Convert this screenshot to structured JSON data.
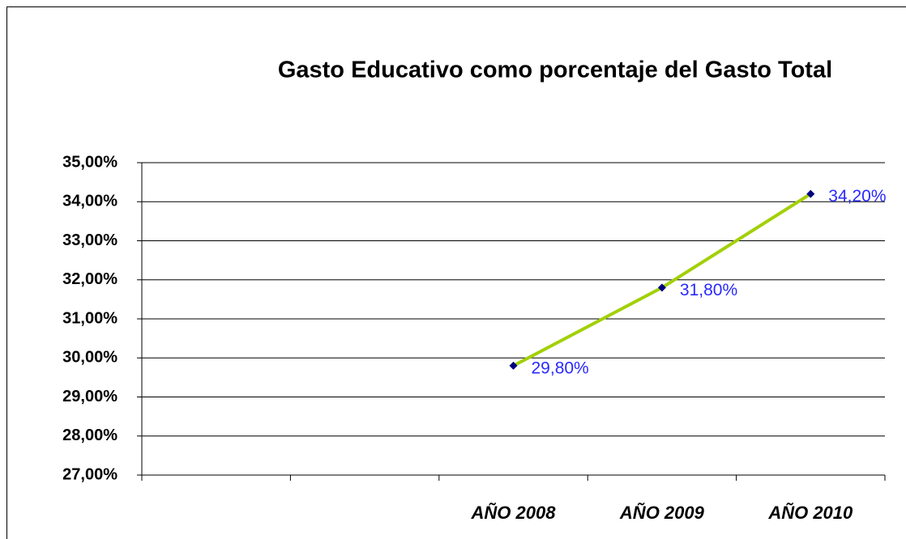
{
  "chart_data": {
    "type": "line",
    "title": "Gasto Educativo como porcentaje del Gasto Total",
    "categories": [
      null,
      null,
      "AÑO 2008",
      "AÑO 2009",
      "AÑO 2010"
    ],
    "values": [
      null,
      null,
      29.8,
      31.8,
      34.2
    ],
    "value_labels": [
      null,
      null,
      "29,80%",
      "31,80%",
      "34,20%"
    ],
    "color": "#a2d007",
    "marker_color": "#000080",
    "label_color": "#2929ff",
    "ylim": [
      27,
      35
    ],
    "yticks": [
      {
        "value": 27,
        "label": "27,00%"
      },
      {
        "value": 28,
        "label": "28,00%"
      },
      {
        "value": 29,
        "label": "29,00%"
      },
      {
        "value": 30,
        "label": "30,00%"
      },
      {
        "value": 31,
        "label": "31,00%"
      },
      {
        "value": 32,
        "label": "32,00%"
      },
      {
        "value": 33,
        "label": "33,00%"
      },
      {
        "value": 34,
        "label": "34,00%"
      },
      {
        "value": 35,
        "label": "35,00%"
      }
    ],
    "grid": true
  }
}
